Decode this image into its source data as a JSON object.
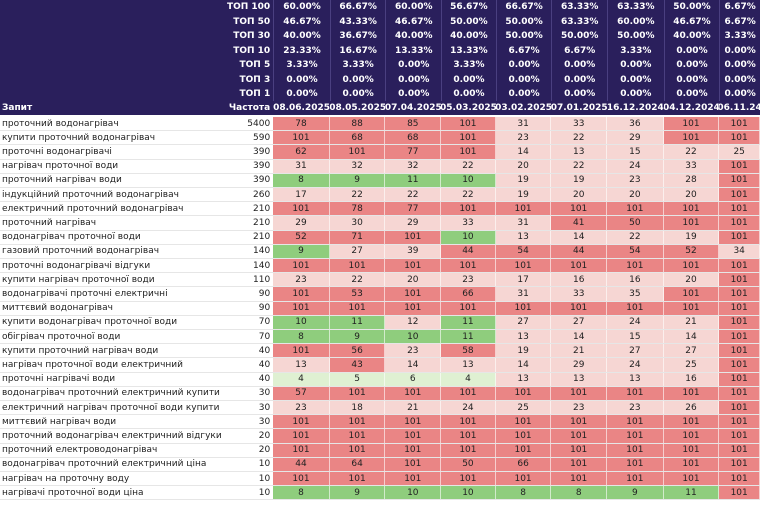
{
  "top_rows": [
    {
      "label": "ТОП 100",
      "values": [
        "60.00%",
        "66.67%",
        "60.00%",
        "56.67%",
        "66.67%",
        "63.33%",
        "63.33%",
        "50.00%",
        "6.67%"
      ]
    },
    {
      "label": "ТОП 50",
      "values": [
        "46.67%",
        "43.33%",
        "46.67%",
        "50.00%",
        "50.00%",
        "63.33%",
        "60.00%",
        "46.67%",
        "6.67%"
      ]
    },
    {
      "label": "ТОП 30",
      "values": [
        "40.00%",
        "36.67%",
        "40.00%",
        "40.00%",
        "50.00%",
        "50.00%",
        "50.00%",
        "40.00%",
        "3.33%"
      ]
    },
    {
      "label": "ТОП 10",
      "values": [
        "23.33%",
        "16.67%",
        "13.33%",
        "13.33%",
        "6.67%",
        "6.67%",
        "3.33%",
        "0.00%",
        "0.00%"
      ]
    },
    {
      "label": "ТОП 5",
      "values": [
        "3.33%",
        "3.33%",
        "0.00%",
        "3.33%",
        "0.00%",
        "0.00%",
        "0.00%",
        "0.00%",
        "0.00%"
      ]
    },
    {
      "label": "ТОП 3",
      "values": [
        "0.00%",
        "0.00%",
        "0.00%",
        "0.00%",
        "0.00%",
        "0.00%",
        "0.00%",
        "0.00%",
        "0.00%"
      ]
    },
    {
      "label": "ТОП 1",
      "values": [
        "0.00%",
        "0.00%",
        "0.00%",
        "0.00%",
        "0.00%",
        "0.00%",
        "0.00%",
        "0.00%",
        "0.00%"
      ]
    }
  ],
  "header": {
    "query": "Запит",
    "frequency": "Частота",
    "dates": [
      "08.06.2025",
      "08.05.2025",
      "07.04.2025",
      "05.03.2025",
      "03.02.2025",
      "07.01.2025",
      "16.12.2024",
      "04.12.2024",
      "06.11.24"
    ]
  },
  "rows": [
    {
      "query": "проточний водонагрівач",
      "freq": "5400",
      "pos": [
        "78",
        "88",
        "85",
        "101",
        "31",
        "33",
        "36",
        "101",
        "101"
      ]
    },
    {
      "query": "купити проточний водонагрівач",
      "freq": "590",
      "pos": [
        "101",
        "68",
        "68",
        "101",
        "23",
        "22",
        "29",
        "101",
        "101"
      ]
    },
    {
      "query": "проточні водонагрівачі",
      "freq": "390",
      "pos": [
        "62",
        "101",
        "77",
        "101",
        "14",
        "13",
        "15",
        "22",
        "25"
      ]
    },
    {
      "query": "нагрівач проточної води",
      "freq": "390",
      "pos": [
        "31",
        "32",
        "32",
        "22",
        "20",
        "22",
        "24",
        "33",
        "101"
      ]
    },
    {
      "query": "проточний нагрівач води",
      "freq": "390",
      "pos": [
        "8",
        "9",
        "11",
        "10",
        "19",
        "19",
        "23",
        "28",
        "101"
      ]
    },
    {
      "query": "індукційний проточний водонагрівач",
      "freq": "260",
      "pos": [
        "17",
        "22",
        "22",
        "22",
        "19",
        "20",
        "20",
        "20",
        "101"
      ]
    },
    {
      "query": "електричний проточний водонагрівач",
      "freq": "210",
      "pos": [
        "101",
        "78",
        "77",
        "101",
        "101",
        "101",
        "101",
        "101",
        "101"
      ]
    },
    {
      "query": "проточний нагрівач",
      "freq": "210",
      "pos": [
        "29",
        "30",
        "29",
        "33",
        "31",
        "41",
        "50",
        "101",
        "101"
      ]
    },
    {
      "query": "водонагрівач проточної води",
      "freq": "210",
      "pos": [
        "52",
        "71",
        "101",
        "10",
        "13",
        "14",
        "22",
        "19",
        "101"
      ]
    },
    {
      "query": "газовий проточний водонагрівач",
      "freq": "140",
      "pos": [
        "9",
        "27",
        "39",
        "44",
        "54",
        "44",
        "54",
        "52",
        "34"
      ]
    },
    {
      "query": "проточні водонагрівачі відгуки",
      "freq": "140",
      "pos": [
        "101",
        "101",
        "101",
        "101",
        "101",
        "101",
        "101",
        "101",
        "101"
      ]
    },
    {
      "query": "купити нагрівач проточної води",
      "freq": "110",
      "pos": [
        "23",
        "22",
        "20",
        "23",
        "17",
        "16",
        "16",
        "20",
        "101"
      ]
    },
    {
      "query": "водонагрівачі проточні електричні",
      "freq": "90",
      "pos": [
        "101",
        "53",
        "101",
        "66",
        "31",
        "33",
        "35",
        "101",
        "101"
      ]
    },
    {
      "query": "миттєвий водонагрівач",
      "freq": "90",
      "pos": [
        "101",
        "101",
        "101",
        "101",
        "101",
        "101",
        "101",
        "101",
        "101"
      ]
    },
    {
      "query": "купити водонагрівач проточної води",
      "freq": "70",
      "pos": [
        "10",
        "11",
        "12",
        "11",
        "27",
        "27",
        "24",
        "21",
        "101"
      ]
    },
    {
      "query": "обігрівач проточної води",
      "freq": "70",
      "pos": [
        "8",
        "9",
        "10",
        "11",
        "13",
        "14",
        "15",
        "14",
        "101"
      ]
    },
    {
      "query": "купити проточний нагрівач води",
      "freq": "40",
      "pos": [
        "101",
        "56",
        "23",
        "58",
        "19",
        "21",
        "27",
        "27",
        "101"
      ]
    },
    {
      "query": "нагрівач проточної води електричний",
      "freq": "40",
      "pos": [
        "13",
        "43",
        "14",
        "13",
        "14",
        "29",
        "24",
        "25",
        "101"
      ]
    },
    {
      "query": "проточні нагрівачі води",
      "freq": "40",
      "pos": [
        "4",
        "5",
        "6",
        "4",
        "13",
        "13",
        "13",
        "16",
        "101"
      ]
    },
    {
      "query": "водонагрівач проточний електричний купити",
      "freq": "30",
      "pos": [
        "57",
        "101",
        "101",
        "101",
        "101",
        "101",
        "101",
        "101",
        "101"
      ]
    },
    {
      "query": "електричний нагрівач проточної води купити",
      "freq": "30",
      "pos": [
        "23",
        "18",
        "21",
        "24",
        "25",
        "23",
        "23",
        "26",
        "101"
      ]
    },
    {
      "query": "миттєвий нагрівач води",
      "freq": "30",
      "pos": [
        "101",
        "101",
        "101",
        "101",
        "101",
        "101",
        "101",
        "101",
        "101"
      ]
    },
    {
      "query": "проточний водонагрівач електричний відгуки",
      "freq": "20",
      "pos": [
        "101",
        "101",
        "101",
        "101",
        "101",
        "101",
        "101",
        "101",
        "101"
      ]
    },
    {
      "query": "проточний електроводонагрівач",
      "freq": "20",
      "pos": [
        "101",
        "101",
        "101",
        "101",
        "101",
        "101",
        "101",
        "101",
        "101"
      ]
    },
    {
      "query": "водонагрівач проточний електричний ціна",
      "freq": "10",
      "pos": [
        "44",
        "64",
        "101",
        "50",
        "66",
        "101",
        "101",
        "101",
        "101"
      ]
    },
    {
      "query": "нагрівач на проточну воду",
      "freq": "10",
      "pos": [
        "101",
        "101",
        "101",
        "101",
        "101",
        "101",
        "101",
        "101",
        "101"
      ]
    },
    {
      "query": "нагрівачі проточної води ціна",
      "freq": "10",
      "pos": [
        "8",
        "9",
        "10",
        "10",
        "8",
        "8",
        "9",
        "11",
        "101"
      ]
    }
  ],
  "colors": {
    "header_bg": "#2a1f5c",
    "green": "#8fcd7d",
    "pale_green": "#dff0d2",
    "pale_pink": "#f6d6d3",
    "red": "#ea8585"
  }
}
